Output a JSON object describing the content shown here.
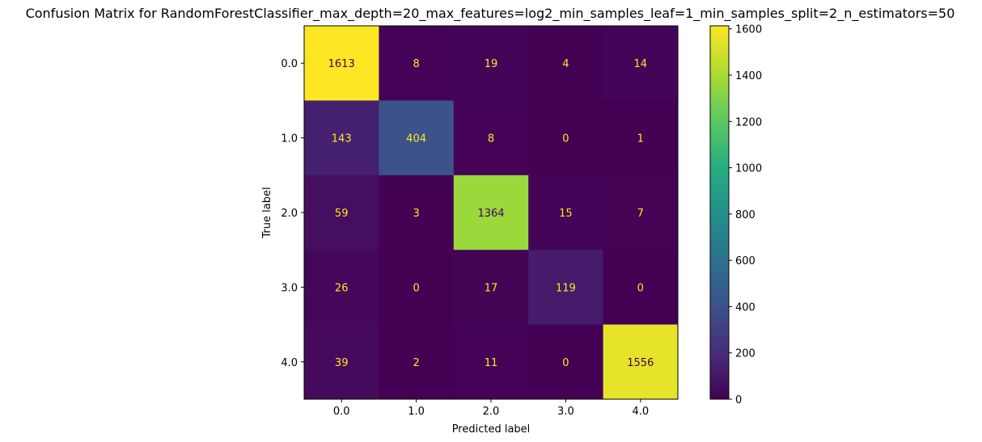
{
  "chart_data": {
    "type": "heatmap",
    "title": "Confusion Matrix for RandomForestClassifier_max_depth=20_max_features=log2_min_samples_leaf=1_min_samples_split=2_n_estimators=50",
    "xlabel": "Predicted label",
    "ylabel": "True label",
    "x_categories": [
      "0.0",
      "1.0",
      "2.0",
      "3.0",
      "4.0"
    ],
    "y_categories": [
      "0.0",
      "1.0",
      "2.0",
      "3.0",
      "4.0"
    ],
    "values": [
      [
        1613,
        8,
        19,
        4,
        14
      ],
      [
        143,
        404,
        8,
        0,
        1
      ],
      [
        59,
        3,
        1364,
        15,
        7
      ],
      [
        26,
        0,
        17,
        119,
        0
      ],
      [
        39,
        2,
        11,
        0,
        1556
      ]
    ],
    "colorbar": {
      "min": 0,
      "max": 1613,
      "ticks": [
        0,
        200,
        400,
        600,
        800,
        1000,
        1200,
        1400,
        1600
      ],
      "colormap": "viridis"
    },
    "text_colors": {
      "on_dark": "#fde725",
      "on_light": "#440154"
    }
  }
}
